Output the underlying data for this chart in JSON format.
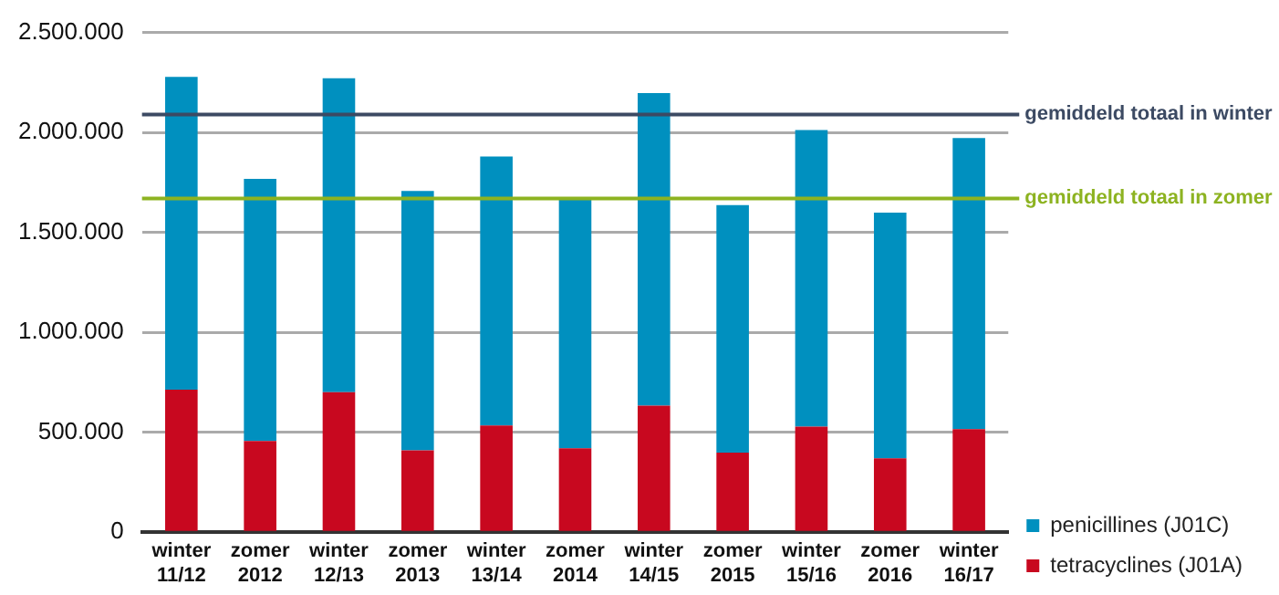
{
  "chart_data": {
    "type": "bar",
    "stacked": true,
    "categories": [
      "winter\n11/12",
      "zomer\n2012",
      "winter\n12/13",
      "zomer\n2013",
      "winter\n13/14",
      "zomer\n2014",
      "winter\n14/15",
      "zomer\n2015",
      "winter\n15/16",
      "zomer\n2016",
      "winter\n16/17"
    ],
    "series": [
      {
        "name": "tetracyclines (J01A)",
        "color": "#c8081f",
        "values": [
          713000,
          456000,
          700000,
          410000,
          534000,
          420000,
          633000,
          398000,
          528000,
          370000,
          516000
        ]
      },
      {
        "name": "penicillines (J01C)",
        "color": "#0090bf",
        "values": [
          1565000,
          1312000,
          1571000,
          1297000,
          1346000,
          1244000,
          1564000,
          1238000,
          1484000,
          1229000,
          1456000
        ]
      }
    ],
    "ylim": [
      0,
      2500000
    ],
    "yticks": [
      {
        "value": 0,
        "label": "0"
      },
      {
        "value": 500000,
        "label": "500.000"
      },
      {
        "value": 1000000,
        "label": "1.000.000"
      },
      {
        "value": 1500000,
        "label": "1.500.000"
      },
      {
        "value": 2000000,
        "label": "2.000.000"
      },
      {
        "value": 2500000,
        "label": "2.500.000"
      }
    ],
    "grid": "y",
    "legend": "right",
    "ref_lines": [
      {
        "axis": "y",
        "value": 2090000,
        "label": "gemiddeld totaal in winter",
        "color": "#3c4a63"
      },
      {
        "axis": "y",
        "value": 1670000,
        "label": "gemiddeld totaal in zomer",
        "color": "#8db321"
      }
    ]
  }
}
